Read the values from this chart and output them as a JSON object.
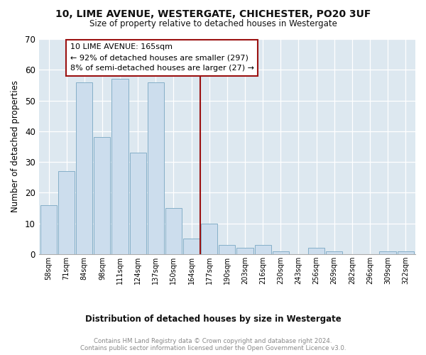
{
  "title": "10, LIME AVENUE, WESTERGATE, CHICHESTER, PO20 3UF",
  "subtitle": "Size of property relative to detached houses in Westergate",
  "xlabel": "Distribution of detached houses by size in Westergate",
  "ylabel": "Number of detached properties",
  "bin_labels": [
    "58sqm",
    "71sqm",
    "84sqm",
    "98sqm",
    "111sqm",
    "124sqm",
    "137sqm",
    "150sqm",
    "164sqm",
    "177sqm",
    "190sqm",
    "203sqm",
    "216sqm",
    "230sqm",
    "243sqm",
    "256sqm",
    "269sqm",
    "282sqm",
    "296sqm",
    "309sqm",
    "322sqm"
  ],
  "bar_heights": [
    16,
    27,
    56,
    38,
    57,
    33,
    56,
    15,
    5,
    10,
    3,
    2,
    3,
    1,
    0,
    2,
    1,
    0,
    0,
    1,
    1
  ],
  "bar_color": "#ccdded",
  "bar_edge_color": "#85afc8",
  "vline_x": 8.5,
  "vline_color": "#9b1111",
  "annotation_line1": "10 LIME AVENUE: 165sqm",
  "annotation_line2": "← 92% of detached houses are smaller (297)",
  "annotation_line3": "8% of semi-detached houses are larger (27) →",
  "annotation_box_color": "#ffffff",
  "annotation_box_edge": "#9b1111",
  "ylim": [
    0,
    70
  ],
  "yticks": [
    0,
    10,
    20,
    30,
    40,
    50,
    60,
    70
  ],
  "footer_text": "Contains HM Land Registry data © Crown copyright and database right 2024.\nContains public sector information licensed under the Open Government Licence v3.0.",
  "plot_bg_color": "#dde8f0",
  "fig_bg_color": "#ffffff",
  "grid_color": "#ffffff"
}
